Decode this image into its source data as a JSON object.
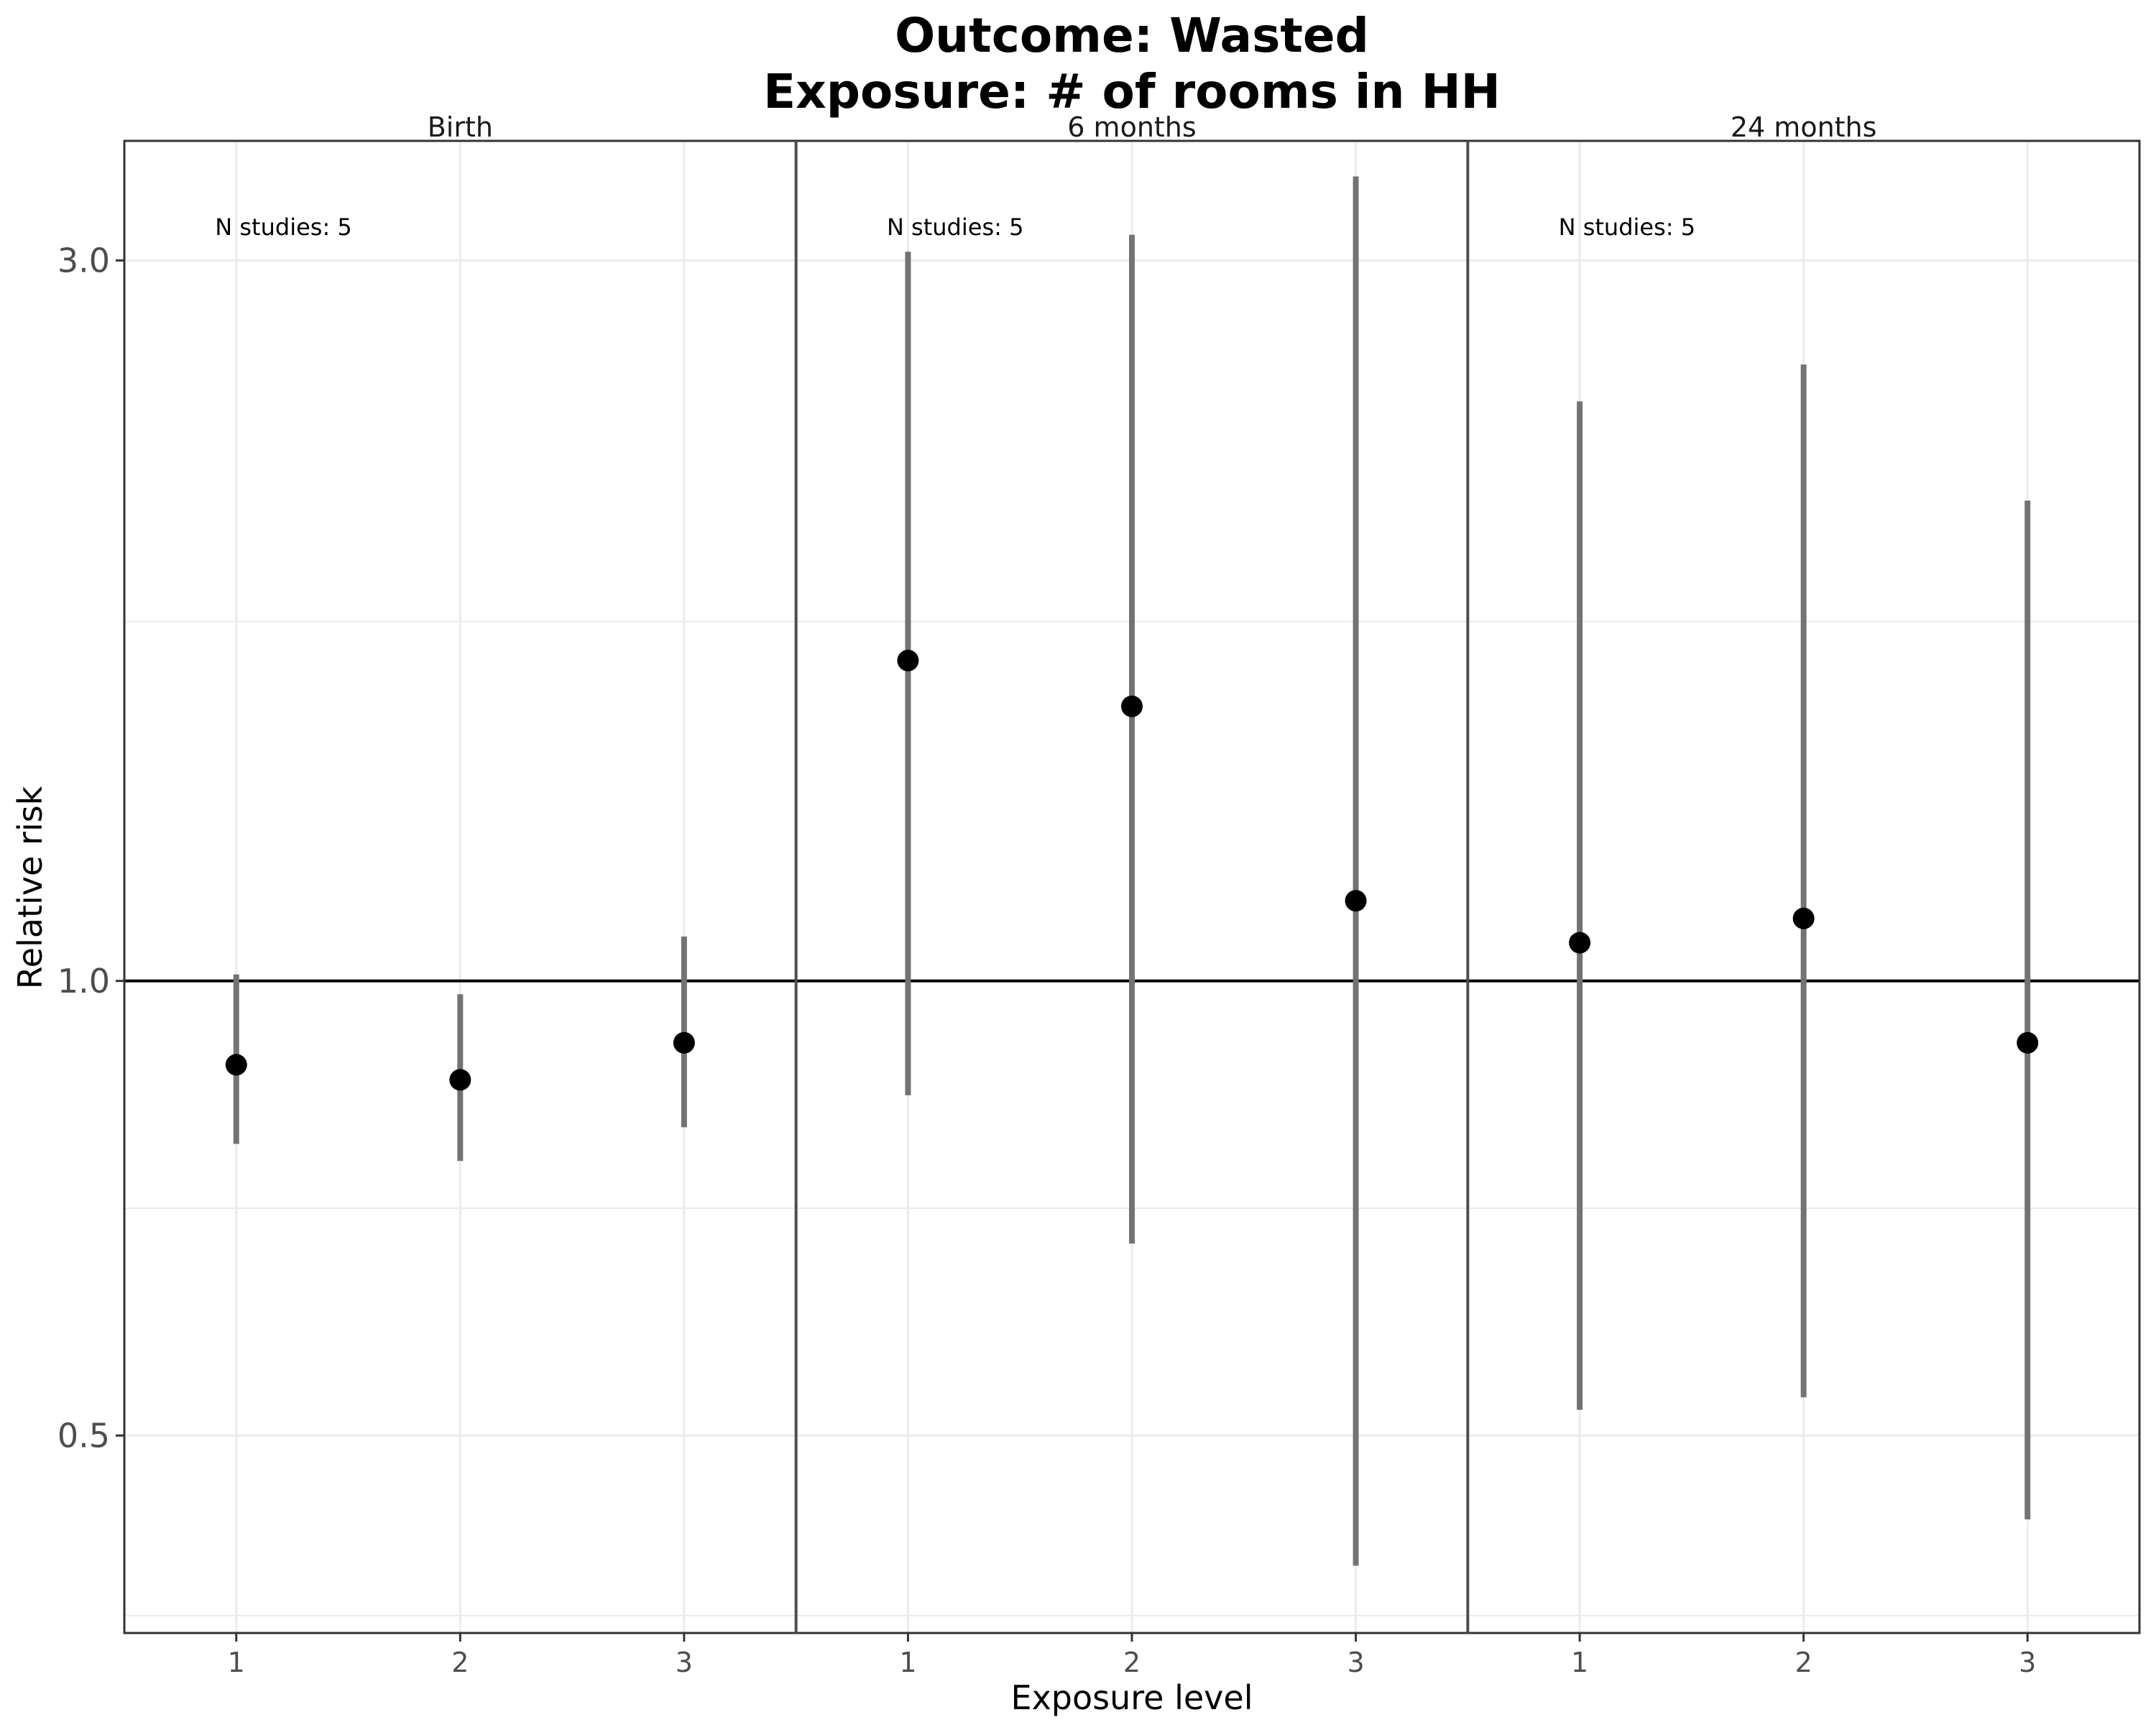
{
  "chart_data": {
    "type": "scatter",
    "subtype": "point-range (estimate with confidence interval)",
    "title_lines": [
      "Outcome: Wasted",
      "Exposure: # of rooms in HH"
    ],
    "xlabel": "Exposure level",
    "ylabel": "Relative risk",
    "y_scale": "log",
    "ylim": [
      0.37,
      3.6
    ],
    "y_ticks": [
      0.5,
      1.0,
      3.0
    ],
    "y_tick_labels": [
      "0.5",
      "1.0",
      "3.0"
    ],
    "y_minor_gridlines": [
      0.38,
      0.707,
      1.73
    ],
    "reference_line": 1.0,
    "x_categories": [
      "1",
      "2",
      "3"
    ],
    "grid": true,
    "colors": {
      "point": "#000000",
      "interval": "#737373",
      "grid": "#ebebeb",
      "reference": "#000000"
    },
    "panels": [
      {
        "label": "Birth",
        "annotation": "N studies: 5",
        "points": [
          {
            "x": "1",
            "rr": 0.88,
            "lower": 0.78,
            "upper": 1.01
          },
          {
            "x": "2",
            "rr": 0.86,
            "lower": 0.76,
            "upper": 0.98
          },
          {
            "x": "3",
            "rr": 0.91,
            "lower": 0.8,
            "upper": 1.07
          }
        ]
      },
      {
        "label": "6 months",
        "annotation": "N studies: 5",
        "points": [
          {
            "x": "1",
            "rr": 1.63,
            "lower": 0.84,
            "upper": 3.04
          },
          {
            "x": "2",
            "rr": 1.52,
            "lower": 0.67,
            "upper": 3.12
          },
          {
            "x": "3",
            "rr": 1.13,
            "lower": 0.41,
            "upper": 3.41
          }
        ]
      },
      {
        "label": "24 months",
        "annotation": "N studies: 5",
        "points": [
          {
            "x": "1",
            "rr": 1.06,
            "lower": 0.52,
            "upper": 2.42
          },
          {
            "x": "2",
            "rr": 1.1,
            "lower": 0.53,
            "upper": 2.56
          },
          {
            "x": "3",
            "rr": 0.91,
            "lower": 0.44,
            "upper": 2.08
          }
        ]
      }
    ]
  }
}
